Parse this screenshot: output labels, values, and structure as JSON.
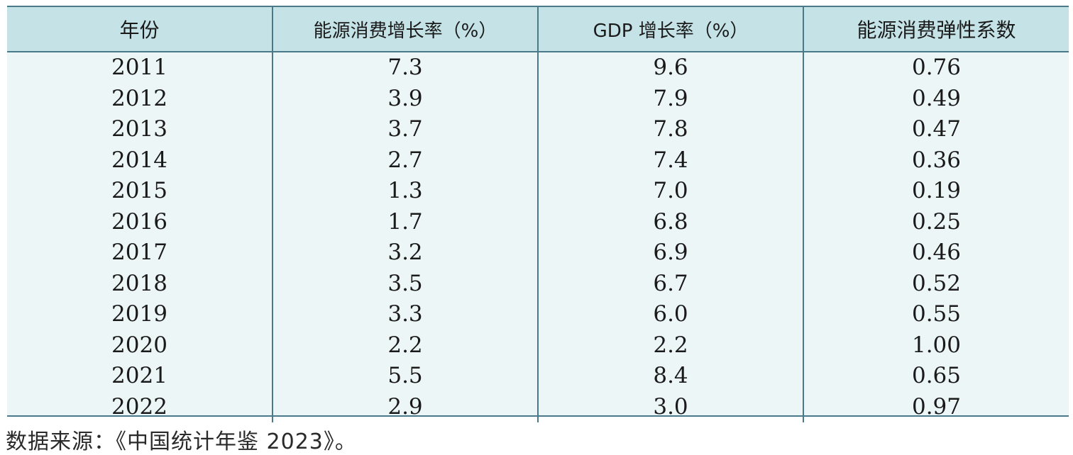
{
  "table": {
    "headers": [
      "年份",
      "能源消费增长率（%）",
      "GDP 增长率（%）",
      "能源消费弹性系数"
    ],
    "rows": [
      [
        "2011",
        "7.3",
        "9.6",
        "0.76"
      ],
      [
        "2012",
        "3.9",
        "7.9",
        "0.49"
      ],
      [
        "2013",
        "3.7",
        "7.8",
        "0.47"
      ],
      [
        "2014",
        "2.7",
        "7.4",
        "0.36"
      ],
      [
        "2015",
        "1.3",
        "7.0",
        "0.19"
      ],
      [
        "2016",
        "1.7",
        "6.8",
        "0.25"
      ],
      [
        "2017",
        "3.2",
        "6.9",
        "0.46"
      ],
      [
        "2018",
        "3.5",
        "6.7",
        "0.52"
      ],
      [
        "2019",
        "3.3",
        "6.0",
        "0.55"
      ],
      [
        "2020",
        "2.2",
        "2.2",
        "1.00"
      ],
      [
        "2021",
        "5.5",
        "8.4",
        "0.65"
      ],
      [
        "2022",
        "2.9",
        "3.0",
        "0.97"
      ]
    ]
  },
  "source_note": "数据来源：《中国统计年鉴 2023》。",
  "colors": {
    "header_bg": "#c5e3e7",
    "body_bg": "#ecf6f6",
    "rule": "#4a7a8a"
  }
}
